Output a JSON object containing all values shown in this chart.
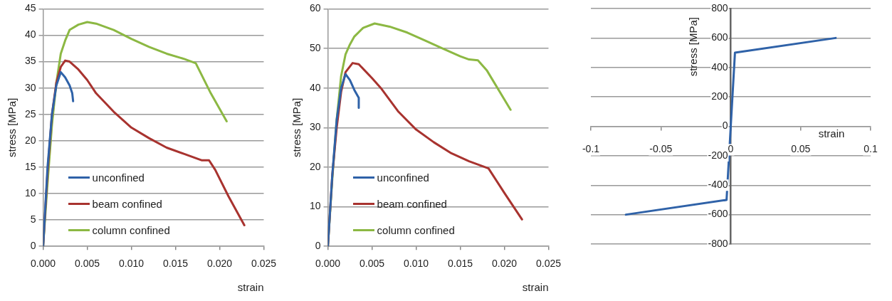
{
  "chart_data": [
    {
      "type": "line",
      "xlabel": "strain",
      "ylabel": "stress [MPa]",
      "xlim": [
        0,
        0.025
      ],
      "ylim": [
        0,
        45
      ],
      "xticks": [
        {
          "value": 0,
          "label": "0.000"
        },
        0.005,
        {
          "value": 0.01,
          "label": "0.010"
        },
        0.015,
        {
          "value": 0.02,
          "label": "0.020"
        },
        0.025
      ],
      "yticks": [
        0,
        5,
        10,
        15,
        20,
        25,
        30,
        35,
        40,
        45
      ],
      "grid": "y",
      "legend": "bottom left",
      "series": [
        {
          "name": "unconfined",
          "color": "#2f62a8",
          "x": [
            0,
            0.0005,
            0.001,
            0.0015,
            0.002,
            0.0025,
            0.003,
            0.0033,
            0.0034
          ],
          "values": [
            0,
            15,
            25,
            30.5,
            33,
            32,
            30.5,
            29,
            27.5
          ]
        },
        {
          "name": "beam confined",
          "color": "#a8332f",
          "x": [
            0,
            0.0005,
            0.001,
            0.0015,
            0.002,
            0.0025,
            0.003,
            0.004,
            0.005,
            0.006,
            0.008,
            0.01,
            0.012,
            0.014,
            0.016,
            0.018,
            0.0188,
            0.0195,
            0.021,
            0.0228
          ],
          "values": [
            0,
            14,
            25,
            31,
            34,
            35.2,
            35,
            33.5,
            31.5,
            29,
            25.5,
            22.5,
            20.5,
            18.7,
            17.5,
            16.3,
            16.3,
            14.5,
            9.5,
            4
          ]
        },
        {
          "name": "column confined",
          "color": "#8cb843",
          "x": [
            0,
            0.0005,
            0.001,
            0.0015,
            0.002,
            0.0025,
            0.003,
            0.004,
            0.005,
            0.006,
            0.008,
            0.01,
            0.012,
            0.014,
            0.016,
            0.0173,
            0.019,
            0.0208
          ],
          "values": [
            0,
            12,
            23,
            31,
            36.5,
            39,
            41,
            42,
            42.5,
            42.2,
            41,
            39.3,
            37.8,
            36.5,
            35.5,
            34.7,
            29,
            23.7
          ]
        }
      ]
    },
    {
      "type": "line",
      "xlabel": "strain",
      "ylabel": "stress [MPa]",
      "xlim": [
        0,
        0.025
      ],
      "ylim": [
        0,
        60
      ],
      "xticks": [
        {
          "value": 0,
          "label": "0.000"
        },
        0.005,
        {
          "value": 0.01,
          "label": "0.010"
        },
        0.015,
        {
          "value": 0.02,
          "label": "0.020"
        },
        0.025
      ],
      "yticks": [
        0,
        10,
        20,
        30,
        40,
        50,
        60
      ],
      "grid": "y",
      "legend": "bottom left",
      "series": [
        {
          "name": "unconfined",
          "color": "#2f62a8",
          "x": [
            0,
            0.0005,
            0.001,
            0.0015,
            0.002,
            0.0025,
            0.003,
            0.0035,
            0.0035
          ],
          "values": [
            0,
            18,
            32,
            40,
            43.5,
            42,
            39.5,
            37.5,
            35
          ]
        },
        {
          "name": "beam confined",
          "color": "#a8332f",
          "x": [
            0,
            0.0005,
            0.001,
            0.0015,
            0.002,
            0.0028,
            0.0035,
            0.005,
            0.006,
            0.008,
            0.01,
            0.012,
            0.014,
            0.016,
            0.0182,
            0.02,
            0.022
          ],
          "values": [
            0,
            18,
            30,
            39,
            44,
            46.3,
            46,
            42.5,
            40,
            34,
            29.5,
            26.3,
            23.5,
            21.5,
            19.7,
            13.5,
            6.8
          ]
        },
        {
          "name": "column confined",
          "color": "#8cb843",
          "x": [
            0,
            0.0005,
            0.001,
            0.0015,
            0.002,
            0.0025,
            0.003,
            0.004,
            0.0053,
            0.007,
            0.009,
            0.011,
            0.013,
            0.015,
            0.016,
            0.017,
            0.018,
            0.0207
          ],
          "values": [
            0,
            17,
            32,
            43,
            48.5,
            51,
            53,
            55.2,
            56.3,
            55.5,
            54,
            52,
            50,
            48,
            47.2,
            47,
            44.5,
            34.5
          ]
        }
      ]
    },
    {
      "type": "line",
      "xlabel": "strain",
      "ylabel": "stress [MPa]",
      "xlim": [
        -0.1,
        0.1
      ],
      "ylim": [
        -800,
        800
      ],
      "xticks": [
        -0.1,
        -0.05,
        0,
        0.05,
        0.1
      ],
      "yticks": [
        -800,
        -600,
        -400,
        -200,
        0,
        200,
        400,
        600,
        800
      ],
      "grid": "y",
      "series": [
        {
          "color": "#2f62a8",
          "x": [
            -0.075,
            -0.003,
            0,
            0.003,
            0.075
          ],
          "values": [
            -600,
            -500,
            0,
            500,
            600
          ]
        }
      ]
    }
  ]
}
